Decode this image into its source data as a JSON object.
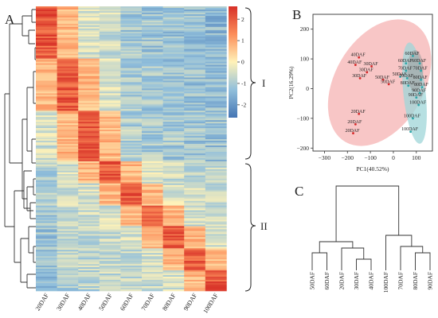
{
  "panels": {
    "heatmap": "A",
    "pca": "B",
    "dendrogram": "C"
  },
  "colors": {
    "high": "#d73027",
    "mid_high": "#fc8d59",
    "mid": "#fff2b8",
    "mid_low": "#91bfdb",
    "low": "#4575b4",
    "ellipse_red": "#f4a8a8",
    "ellipse_blue": "#9fd6d8",
    "point_red": "#d62728",
    "point_teal": "#2ca5a8"
  },
  "chart_data": [
    {
      "type": "heatmap",
      "panel": "A",
      "columns": [
        "20DAF",
        "30DAF",
        "40DAF",
        "50DAF",
        "60DAF",
        "70DAF",
        "80DAF",
        "90DAF",
        "100DAF"
      ],
      "colorbar": {
        "ticks": [
          2,
          1,
          0,
          -1,
          -2
        ],
        "range": [
          -2.6,
          2.6
        ]
      },
      "clusters": [
        {
          "name": "I",
          "columns_high": [
            "20DAF",
            "30DAF",
            "40DAF"
          ]
        },
        {
          "name": "II",
          "columns_high": [
            "50DAF",
            "60DAF",
            "70DAF",
            "80DAF",
            "90DAF",
            "100DAF"
          ]
        }
      ]
    },
    {
      "type": "scatter",
      "panel": "B",
      "xlabel": "PC1(40.52%)",
      "ylabel": "PC2(16.29%)",
      "xlim": [
        -350,
        170
      ],
      "ylim": [
        -210,
        250
      ],
      "xticks": [
        -300,
        -200,
        -100,
        0,
        100
      ],
      "yticks": [
        200,
        100,
        0,
        -100,
        -200
      ],
      "points": [
        {
          "label": "40DAF",
          "x": -150,
          "y": 105,
          "group": "red"
        },
        {
          "label": "40DAF",
          "x": -165,
          "y": 80,
          "group": "red"
        },
        {
          "label": "30DAF",
          "x": -95,
          "y": 75,
          "group": "red"
        },
        {
          "label": "30DAF",
          "x": -115,
          "y": 55,
          "group": "red"
        },
        {
          "label": "30DAF",
          "x": -145,
          "y": 35,
          "group": "red"
        },
        {
          "label": "50DAF",
          "x": -45,
          "y": 30,
          "group": "red"
        },
        {
          "label": "50DAF",
          "x": -20,
          "y": 15,
          "group": "red"
        },
        {
          "label": "20DAF",
          "x": -150,
          "y": -85,
          "group": "red"
        },
        {
          "label": "20DAF",
          "x": -165,
          "y": -120,
          "group": "red"
        },
        {
          "label": "20DAF",
          "x": -175,
          "y": -150,
          "group": "red"
        },
        {
          "label": "60DAF",
          "x": 85,
          "y": 110,
          "group": "teal"
        },
        {
          "label": "60DAF",
          "x": 55,
          "y": 85,
          "group": "teal"
        },
        {
          "label": "60DAF",
          "x": 115,
          "y": 85,
          "group": "teal"
        },
        {
          "label": "70DAF",
          "x": 55,
          "y": 60,
          "group": "teal"
        },
        {
          "label": "70DAF",
          "x": 120,
          "y": 60,
          "group": "teal"
        },
        {
          "label": "50DAF",
          "x": 30,
          "y": 40,
          "group": "teal"
        },
        {
          "label": "70DAF",
          "x": 60,
          "y": 35,
          "group": "teal"
        },
        {
          "label": "80DAF",
          "x": 120,
          "y": 30,
          "group": "teal"
        },
        {
          "label": "80DAF",
          "x": 65,
          "y": 10,
          "group": "teal"
        },
        {
          "label": "80DAF",
          "x": 125,
          "y": 5,
          "group": "teal"
        },
        {
          "label": "90DAF",
          "x": 115,
          "y": -15,
          "group": "teal"
        },
        {
          "label": "90DAF",
          "x": 100,
          "y": -30,
          "group": "teal"
        },
        {
          "label": "100DAF",
          "x": 110,
          "y": -55,
          "group": "teal"
        },
        {
          "label": "100DAF",
          "x": 85,
          "y": -100,
          "group": "teal"
        },
        {
          "label": "100DAF",
          "x": 75,
          "y": -145,
          "group": "teal"
        }
      ]
    },
    {
      "type": "dendrogram",
      "panel": "C",
      "leaves": [
        "50DAF",
        "60DAF",
        "20DAF",
        "30DAF",
        "40DAF",
        "100DAF",
        "70DAF",
        "80DAF",
        "90DAF"
      ]
    }
  ]
}
